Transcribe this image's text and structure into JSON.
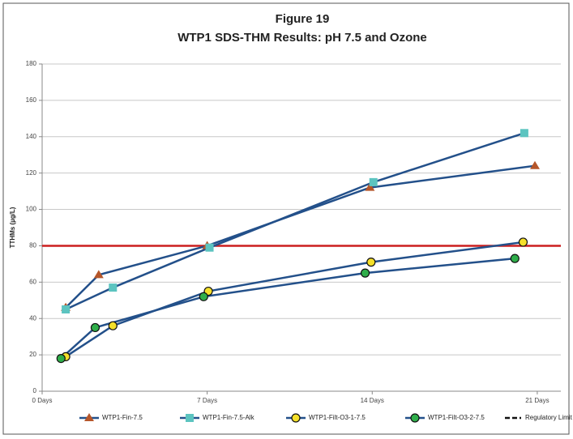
{
  "chart_data": {
    "type": "line",
    "title": "Figure 19",
    "subtitle": "WTP1 SDS-THM Results: pH 7.5 and Ozone",
    "y_label": "TTHMs (µg/L)",
    "xlim": [
      0,
      22
    ],
    "ylim": [
      0,
      180
    ],
    "xticks": [
      {
        "value": 0,
        "label": "0 Days"
      },
      {
        "value": 7,
        "label": "7 Days"
      },
      {
        "value": 14,
        "label": "14 Days"
      },
      {
        "value": 21,
        "label": "21 Days"
      }
    ],
    "yticks": [
      0,
      20,
      40,
      60,
      80,
      100,
      120,
      140,
      160,
      180
    ],
    "grid": true,
    "line_color": "#23508a",
    "series": [
      {
        "name": "WTP1-Fin-7.5",
        "color": "#b5562a",
        "marker": "triangle",
        "x": [
          1,
          2.4,
          7,
          13.9,
          20.9
        ],
        "values": [
          46,
          64,
          80,
          112,
          124
        ]
      },
      {
        "name": "WTP1-Fin-7.5-Alk",
        "color": "#5cc4c0",
        "marker": "square",
        "x": [
          1,
          3,
          7.1,
          14.05,
          20.45
        ],
        "values": [
          45,
          57,
          79,
          115,
          142
        ]
      },
      {
        "name": "WTP1-Filt-O3-1-7.5",
        "color": "#f5e02a",
        "marker": "circle",
        "x": [
          1,
          3,
          7.05,
          13.95,
          20.4
        ],
        "values": [
          19,
          36,
          55,
          71,
          82
        ]
      },
      {
        "name": "WTP1-Filt-O3-2-7.5",
        "color": "#2fae4a",
        "marker": "circle",
        "x": [
          0.8,
          2.25,
          6.85,
          13.7,
          20.05
        ],
        "values": [
          18,
          35,
          52,
          65,
          73
        ]
      }
    ],
    "limit": {
      "name": "Regulatory Limit",
      "value": 80,
      "color": "#cc1f1f"
    }
  }
}
